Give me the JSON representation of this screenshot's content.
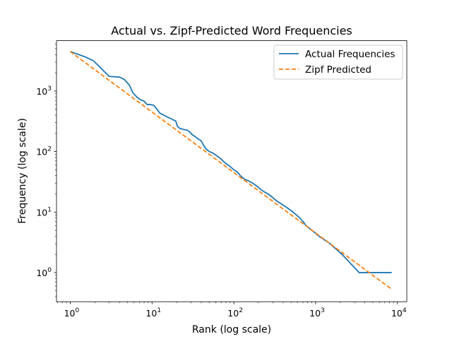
{
  "chart_data": {
    "type": "line",
    "title": "Actual vs. Zipf-Predicted Word Frequencies",
    "xlabel": "Rank (log scale)",
    "ylabel": "Frequency (log scale)",
    "xscale": "log",
    "yscale": "log",
    "xlim": [
      0.68,
      13000
    ],
    "ylim": [
      0.33,
      6800
    ],
    "grid": false,
    "legend_position": "top-right",
    "x_ticks": [
      {
        "base": "10",
        "exp": "0",
        "value": 1
      },
      {
        "base": "10",
        "exp": "1",
        "value": 10
      },
      {
        "base": "10",
        "exp": "2",
        "value": 100
      },
      {
        "base": "10",
        "exp": "3",
        "value": 1000
      },
      {
        "base": "10",
        "exp": "4",
        "value": 10000
      }
    ],
    "y_ticks": [
      {
        "base": "10",
        "exp": "0",
        "value": 1
      },
      {
        "base": "10",
        "exp": "1",
        "value": 10
      },
      {
        "base": "10",
        "exp": "2",
        "value": 100
      },
      {
        "base": "10",
        "exp": "3",
        "value": 1000
      }
    ],
    "series": [
      {
        "name": "Actual Frequencies",
        "color": "#1f77b4",
        "style": "solid",
        "points": [
          [
            1,
            4500
          ],
          [
            1.5,
            3700
          ],
          [
            1.9,
            3200
          ],
          [
            2.3,
            2500
          ],
          [
            2.7,
            2000
          ],
          [
            3,
            1750
          ],
          [
            4,
            1700
          ],
          [
            4.6,
            1550
          ],
          [
            5.3,
            1250
          ],
          [
            5.8,
            950
          ],
          [
            6.5,
            800
          ],
          [
            7.2,
            720
          ],
          [
            8,
            680
          ],
          [
            8.7,
            600
          ],
          [
            9.5,
            600
          ],
          [
            10.5,
            580
          ],
          [
            11.5,
            500
          ],
          [
            12.5,
            430
          ],
          [
            14,
            400
          ],
          [
            15.5,
            370
          ],
          [
            17,
            350
          ],
          [
            18.5,
            330
          ],
          [
            19.5,
            320
          ],
          [
            20.5,
            260
          ],
          [
            22,
            240
          ],
          [
            25,
            230
          ],
          [
            27,
            225
          ],
          [
            29,
            210
          ],
          [
            31,
            190
          ],
          [
            34,
            175
          ],
          [
            37,
            160
          ],
          [
            40,
            150
          ],
          [
            43,
            125
          ],
          [
            46,
            110
          ],
          [
            50,
            100
          ],
          [
            55,
            95
          ],
          [
            62,
            85
          ],
          [
            70,
            75
          ],
          [
            78,
            65
          ],
          [
            88,
            58
          ],
          [
            100,
            50
          ],
          [
            110,
            46
          ],
          [
            120,
            40
          ],
          [
            135,
            35
          ],
          [
            150,
            33
          ],
          [
            170,
            30
          ],
          [
            190,
            27
          ],
          [
            210,
            24
          ],
          [
            230,
            22
          ],
          [
            260,
            20
          ],
          [
            290,
            18
          ],
          [
            320,
            16
          ],
          [
            340,
            15
          ],
          [
            370,
            14
          ],
          [
            400,
            13
          ],
          [
            440,
            12
          ],
          [
            480,
            11
          ],
          [
            530,
            10
          ],
          [
            580,
            9
          ],
          [
            640,
            8
          ],
          [
            700,
            7
          ],
          [
            760,
            6
          ],
          [
            900,
            5
          ],
          [
            1100,
            4
          ],
          [
            1500,
            3
          ],
          [
            2100,
            2
          ],
          [
            3400,
            1
          ],
          [
            8500,
            1
          ]
        ]
      },
      {
        "name": "Zipf Predicted",
        "color": "#ff7f0e",
        "style": "dashed",
        "points": [
          [
            1,
            4500
          ],
          [
            8500,
            0.53
          ]
        ]
      }
    ]
  }
}
